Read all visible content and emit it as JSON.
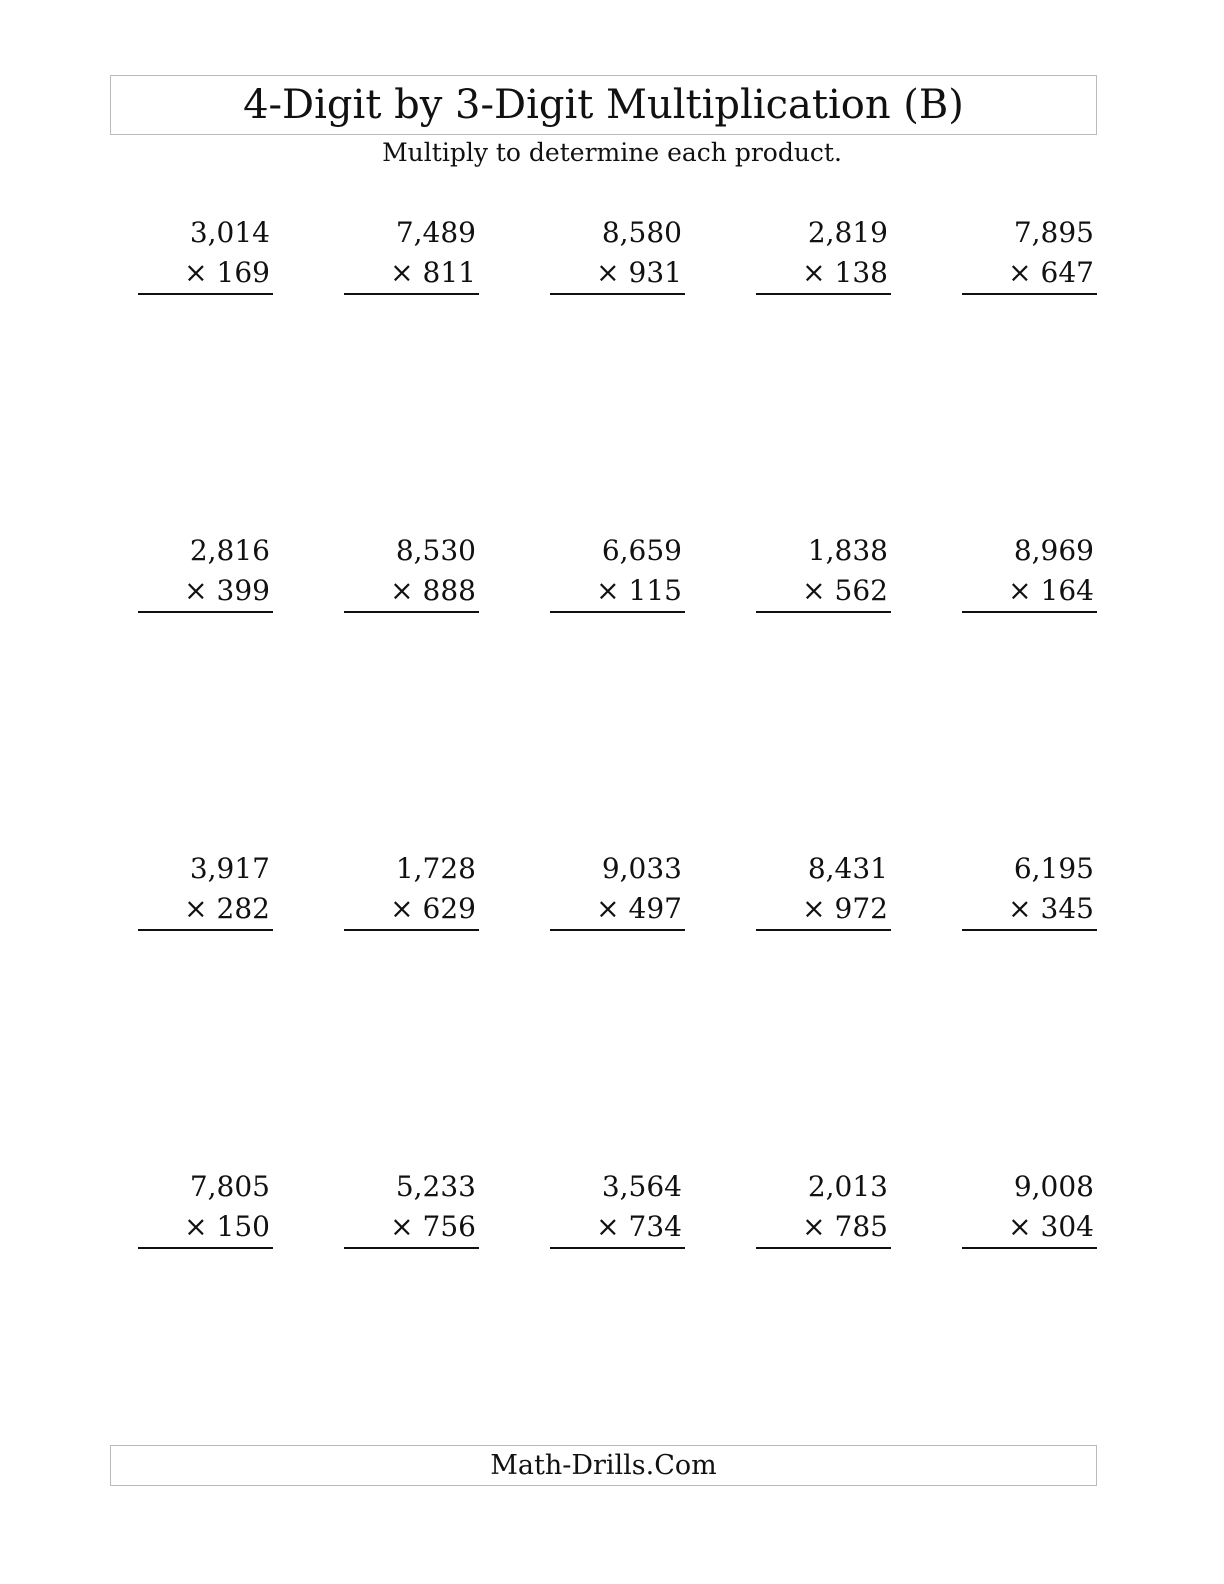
{
  "header": {
    "title": "4-Digit by 3-Digit Multiplication (B)",
    "instructions": "Multiply to determine each product."
  },
  "operator": "×",
  "problems": [
    [
      {
        "top": "3,014",
        "bottom": "169"
      },
      {
        "top": "7,489",
        "bottom": "811"
      },
      {
        "top": "8,580",
        "bottom": "931"
      },
      {
        "top": "2,819",
        "bottom": "138"
      },
      {
        "top": "7,895",
        "bottom": "647"
      }
    ],
    [
      {
        "top": "2,816",
        "bottom": "399"
      },
      {
        "top": "8,530",
        "bottom": "888"
      },
      {
        "top": "6,659",
        "bottom": "115"
      },
      {
        "top": "1,838",
        "bottom": "562"
      },
      {
        "top": "8,969",
        "bottom": "164"
      }
    ],
    [
      {
        "top": "3,917",
        "bottom": "282"
      },
      {
        "top": "1,728",
        "bottom": "629"
      },
      {
        "top": "9,033",
        "bottom": "497"
      },
      {
        "top": "8,431",
        "bottom": "972"
      },
      {
        "top": "6,195",
        "bottom": "345"
      }
    ],
    [
      {
        "top": "7,805",
        "bottom": "150"
      },
      {
        "top": "5,233",
        "bottom": "756"
      },
      {
        "top": "3,564",
        "bottom": "734"
      },
      {
        "top": "2,013",
        "bottom": "785"
      },
      {
        "top": "9,008",
        "bottom": "304"
      }
    ]
  ],
  "footer": {
    "site": "Math-Drills.Com"
  }
}
